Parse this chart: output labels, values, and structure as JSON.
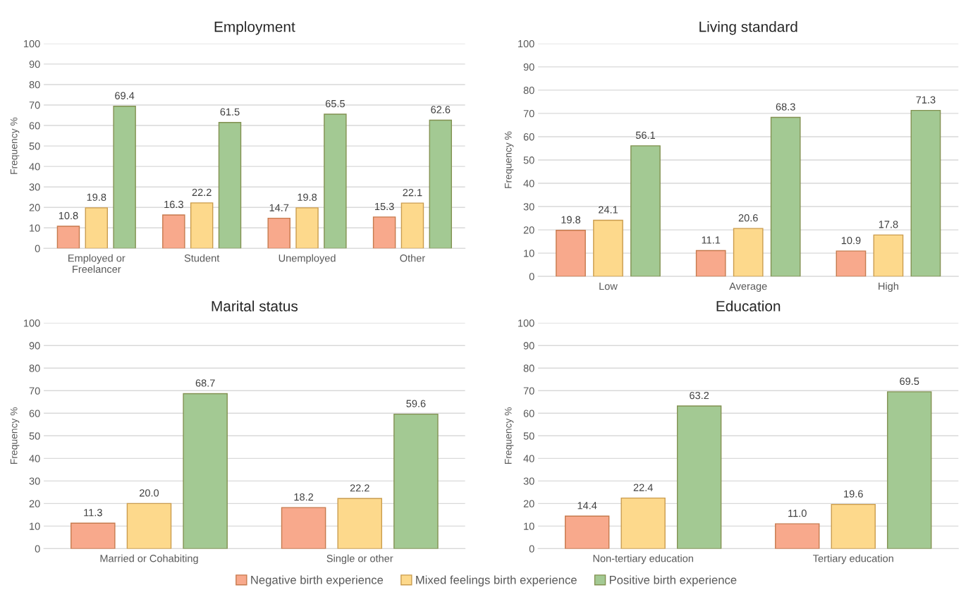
{
  "chart_data": [
    {
      "type": "bar",
      "title": "Employment",
      "ylabel": "Frequency %",
      "categories": [
        "Employed or\nFreelancer",
        "Student",
        "Unemployed",
        "Other"
      ],
      "ylim": [
        0,
        100
      ],
      "yticks": [
        0,
        10,
        20,
        30,
        40,
        50,
        60,
        70,
        80,
        90,
        100
      ],
      "grid": "y",
      "data_labels": true,
      "legend": "bottom",
      "series": [
        {
          "name": "Negative birth experience",
          "color": "#f8a98c",
          "values": [
            10.8,
            16.3,
            14.7,
            15.3
          ]
        },
        {
          "name": "Mixed feelings birth experience",
          "color": "#fdd98c",
          "values": [
            19.8,
            22.2,
            19.8,
            22.1
          ]
        },
        {
          "name": "Positive birth experience",
          "color": "#a3c993",
          "values": [
            69.4,
            61.5,
            65.5,
            62.6
          ]
        }
      ]
    },
    {
      "type": "bar",
      "title": "Living standard",
      "ylabel": "Frequency %",
      "categories": [
        "Low",
        "Average",
        "High"
      ],
      "ylim": [
        0,
        100
      ],
      "yticks": [
        0,
        10,
        20,
        30,
        40,
        50,
        60,
        70,
        80,
        90,
        100
      ],
      "grid": "y",
      "data_labels": true,
      "series": [
        {
          "color": "#f8a98c",
          "values": [
            19.8,
            11.1,
            10.9
          ]
        },
        {
          "color": "#fdd98c",
          "values": [
            24.1,
            20.6,
            17.8
          ]
        },
        {
          "color": "#a3c993",
          "values": [
            56.1,
            68.3,
            71.3
          ]
        }
      ]
    },
    {
      "type": "bar",
      "title": "Marital status",
      "ylabel": "Frequency %",
      "categories": [
        "Married or Cohabiting",
        "Single or other"
      ],
      "ylim": [
        0,
        100
      ],
      "yticks": [
        0,
        10,
        20,
        30,
        40,
        50,
        60,
        70,
        80,
        90,
        100
      ],
      "grid": "y",
      "series": [
        {
          "color": "#f8a98c",
          "values": [
            11.3,
            18.2
          ],
          "value_labels": [
            "11.3",
            "18.2"
          ]
        },
        {
          "color": "#fdd98c",
          "values": [
            20.0,
            22.2
          ],
          "value_labels": [
            "20.0",
            "22.2"
          ]
        },
        {
          "color": "#a3c993",
          "values": [
            68.7,
            59.6
          ],
          "value_labels": [
            "68.7",
            "59.6"
          ]
        }
      ]
    },
    {
      "type": "bar",
      "title": "Education",
      "ylabel": "Frequency %",
      "categories": [
        "Non-tertiary education",
        "Tertiary education"
      ],
      "ylim": [
        0,
        100
      ],
      "yticks": [
        0,
        10,
        20,
        30,
        40,
        50,
        60,
        70,
        80,
        90,
        100
      ],
      "grid": "y",
      "series": [
        {
          "color": "#f8a98c",
          "values": [
            14.4,
            11.0
          ],
          "value_labels": [
            "14.4",
            "11.0"
          ]
        },
        {
          "color": "#fdd98c",
          "values": [
            22.4,
            19.6
          ],
          "value_labels": [
            "22.4",
            "19.6"
          ]
        },
        {
          "color": "#a3c993",
          "values": [
            63.2,
            69.5
          ],
          "value_labels": [
            "63.2",
            "69.5"
          ]
        }
      ]
    }
  ]
}
